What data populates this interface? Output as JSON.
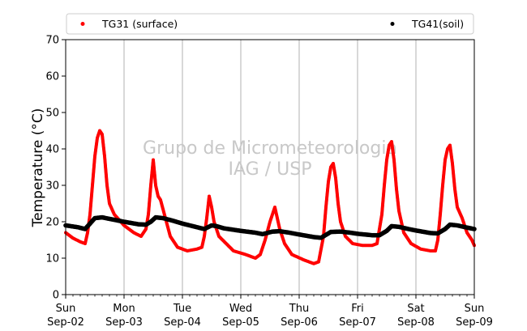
{
  "chart_data": {
    "type": "scatter",
    "xlabel": "",
    "ylabel": "Temperature (°C)",
    "ylim": [
      0,
      70
    ],
    "xlim": [
      "2018-09-02 00:00",
      "2018-09-09 00:00"
    ],
    "y_ticks": [
      0,
      10,
      20,
      30,
      40,
      50,
      60,
      70
    ],
    "x_ticks": [
      {
        "day": "Sun",
        "date": "Sep-02"
      },
      {
        "day": "Mon",
        "date": "Sep-03"
      },
      {
        "day": "Tue",
        "date": "Sep-04"
      },
      {
        "day": "Wed",
        "date": "Sep-05"
      },
      {
        "day": "Thu",
        "date": "Sep-06"
      },
      {
        "day": "Fri",
        "date": "Sep-07"
      },
      {
        "day": "Sat",
        "date": "Sep-08"
      },
      {
        "day": "Sun",
        "date": "Sep-09"
      }
    ],
    "grid": "vertical",
    "legend": "top",
    "watermark": [
      "Grupo de Micrometeorologia",
      "IAG / USP"
    ],
    "series": [
      {
        "name": "TG31 (surface)",
        "color": "#ff0000",
        "points": [
          [
            "2018-09-02 00:00",
            17
          ],
          [
            "2018-09-02 03:00",
            15.5
          ],
          [
            "2018-09-02 06:00",
            14.5
          ],
          [
            "2018-09-02 08:00",
            14
          ],
          [
            "2018-09-02 09:00",
            17
          ],
          [
            "2018-09-02 10:00",
            22
          ],
          [
            "2018-09-02 11:00",
            30
          ],
          [
            "2018-09-02 12:00",
            38
          ],
          [
            "2018-09-02 13:00",
            43
          ],
          [
            "2018-09-02 14:00",
            45
          ],
          [
            "2018-09-02 15:00",
            44
          ],
          [
            "2018-09-02 16:00",
            38
          ],
          [
            "2018-09-02 17:00",
            30
          ],
          [
            "2018-09-02 18:00",
            25
          ],
          [
            "2018-09-02 20:00",
            22
          ],
          [
            "2018-09-03 00:00",
            19
          ],
          [
            "2018-09-03 04:00",
            17
          ],
          [
            "2018-09-03 07:00",
            16
          ],
          [
            "2018-09-03 09:00",
            18
          ],
          [
            "2018-09-03 10:00",
            22
          ],
          [
            "2018-09-03 11:00",
            30
          ],
          [
            "2018-09-03 12:00",
            37
          ],
          [
            "2018-09-03 13:00",
            30
          ],
          [
            "2018-09-03 14:00",
            27
          ],
          [
            "2018-09-03 15:00",
            26
          ],
          [
            "2018-09-03 17:00",
            21
          ],
          [
            "2018-09-03 19:00",
            16
          ],
          [
            "2018-09-03 22:00",
            13
          ],
          [
            "2018-09-04 02:00",
            12
          ],
          [
            "2018-09-04 06:00",
            12.5
          ],
          [
            "2018-09-04 08:00",
            13
          ],
          [
            "2018-09-04 09:00",
            16
          ],
          [
            "2018-09-04 10:00",
            21
          ],
          [
            "2018-09-04 11:00",
            27
          ],
          [
            "2018-09-04 12:00",
            24
          ],
          [
            "2018-09-04 13:00",
            20
          ],
          [
            "2018-09-04 15:00",
            16
          ],
          [
            "2018-09-04 18:00",
            14
          ],
          [
            "2018-09-04 21:00",
            12
          ],
          [
            "2018-09-05 02:00",
            11
          ],
          [
            "2018-09-05 06:00",
            10
          ],
          [
            "2018-09-05 08:00",
            11
          ],
          [
            "2018-09-05 10:00",
            15
          ],
          [
            "2018-09-05 12:00",
            20
          ],
          [
            "2018-09-05 13:00",
            22
          ],
          [
            "2018-09-05 14:00",
            24
          ],
          [
            "2018-09-05 15:00",
            21
          ],
          [
            "2018-09-05 16:00",
            18
          ],
          [
            "2018-09-05 18:00",
            14
          ],
          [
            "2018-09-05 21:00",
            11
          ],
          [
            "2018-09-06 02:00",
            9.5
          ],
          [
            "2018-09-06 06:00",
            8.5
          ],
          [
            "2018-09-06 08:00",
            9
          ],
          [
            "2018-09-06 10:00",
            16
          ],
          [
            "2018-09-06 11:00",
            24
          ],
          [
            "2018-09-06 12:00",
            31
          ],
          [
            "2018-09-06 13:00",
            35
          ],
          [
            "2018-09-06 14:00",
            36
          ],
          [
            "2018-09-06 15:00",
            32
          ],
          [
            "2018-09-06 16:00",
            25
          ],
          [
            "2018-09-06 17:00",
            20
          ],
          [
            "2018-09-06 19:00",
            16
          ],
          [
            "2018-09-06 22:00",
            14
          ],
          [
            "2018-09-07 02:00",
            13.5
          ],
          [
            "2018-09-07 06:00",
            13.5
          ],
          [
            "2018-09-07 08:00",
            14
          ],
          [
            "2018-09-07 10:00",
            22
          ],
          [
            "2018-09-07 11:00",
            30
          ],
          [
            "2018-09-07 12:00",
            37
          ],
          [
            "2018-09-07 13:00",
            41
          ],
          [
            "2018-09-07 14:00",
            42
          ],
          [
            "2018-09-07 15:00",
            37
          ],
          [
            "2018-09-07 16:00",
            29
          ],
          [
            "2018-09-07 17:00",
            23
          ],
          [
            "2018-09-07 19:00",
            17
          ],
          [
            "2018-09-07 22:00",
            14
          ],
          [
            "2018-09-08 02:00",
            12.5
          ],
          [
            "2018-09-08 06:00",
            12
          ],
          [
            "2018-09-08 08:00",
            12
          ],
          [
            "2018-09-08 09:00",
            15
          ],
          [
            "2018-09-08 10:00",
            22
          ],
          [
            "2018-09-08 11:00",
            30
          ],
          [
            "2018-09-08 12:00",
            37
          ],
          [
            "2018-09-08 13:00",
            40
          ],
          [
            "2018-09-08 14:00",
            41
          ],
          [
            "2018-09-08 15:00",
            36
          ],
          [
            "2018-09-08 16:00",
            29
          ],
          [
            "2018-09-08 17:00",
            24
          ],
          [
            "2018-09-08 19:00",
            21
          ],
          [
            "2018-09-08 21:00",
            17
          ],
          [
            "2018-09-08 23:00",
            15
          ],
          [
            "2018-09-09 00:00",
            13.5
          ]
        ]
      },
      {
        "name": "TG41(soil)",
        "color": "#000000",
        "points": [
          [
            "2018-09-02 00:00",
            19
          ],
          [
            "2018-09-02 05:00",
            18.5
          ],
          [
            "2018-09-02 08:00",
            18
          ],
          [
            "2018-09-02 10:00",
            19.5
          ],
          [
            "2018-09-02 12:00",
            21
          ],
          [
            "2018-09-02 15:00",
            21.2
          ],
          [
            "2018-09-02 18:00",
            20.8
          ],
          [
            "2018-09-03 00:00",
            20
          ],
          [
            "2018-09-03 06:00",
            19.3
          ],
          [
            "2018-09-03 09:00",
            19.2
          ],
          [
            "2018-09-03 11:00",
            20
          ],
          [
            "2018-09-03 13:00",
            21.2
          ],
          [
            "2018-09-03 16:00",
            21
          ],
          [
            "2018-09-03 20:00",
            20.3
          ],
          [
            "2018-09-04 00:00",
            19.5
          ],
          [
            "2018-09-04 06:00",
            18.5
          ],
          [
            "2018-09-04 09:00",
            18
          ],
          [
            "2018-09-04 12:00",
            19
          ],
          [
            "2018-09-04 14:00",
            18.8
          ],
          [
            "2018-09-04 17:00",
            18.2
          ],
          [
            "2018-09-05 00:00",
            17.5
          ],
          [
            "2018-09-05 06:00",
            17
          ],
          [
            "2018-09-05 09:00",
            16.6
          ],
          [
            "2018-09-05 13:00",
            17.3
          ],
          [
            "2018-09-05 16:00",
            17.4
          ],
          [
            "2018-09-05 20:00",
            17
          ],
          [
            "2018-09-06 00:00",
            16.5
          ],
          [
            "2018-09-06 06:00",
            15.8
          ],
          [
            "2018-09-06 09:00",
            15.6
          ],
          [
            "2018-09-06 13:00",
            17.2
          ],
          [
            "2018-09-06 17:00",
            17.3
          ],
          [
            "2018-09-06 21:00",
            17
          ],
          [
            "2018-09-07 00:00",
            16.7
          ],
          [
            "2018-09-07 06:00",
            16.3
          ],
          [
            "2018-09-07 09:00",
            16.3
          ],
          [
            "2018-09-07 12:00",
            17.5
          ],
          [
            "2018-09-07 14:00",
            18.8
          ],
          [
            "2018-09-07 17:00",
            18.6
          ],
          [
            "2018-09-07 21:00",
            18
          ],
          [
            "2018-09-08 00:00",
            17.6
          ],
          [
            "2018-09-08 06:00",
            16.9
          ],
          [
            "2018-09-08 09:00",
            16.8
          ],
          [
            "2018-09-08 12:00",
            18
          ],
          [
            "2018-09-08 14:00",
            19.2
          ],
          [
            "2018-09-08 17:00",
            19
          ],
          [
            "2018-09-08 21:00",
            18.4
          ],
          [
            "2018-09-09 00:00",
            18
          ]
        ]
      }
    ]
  }
}
